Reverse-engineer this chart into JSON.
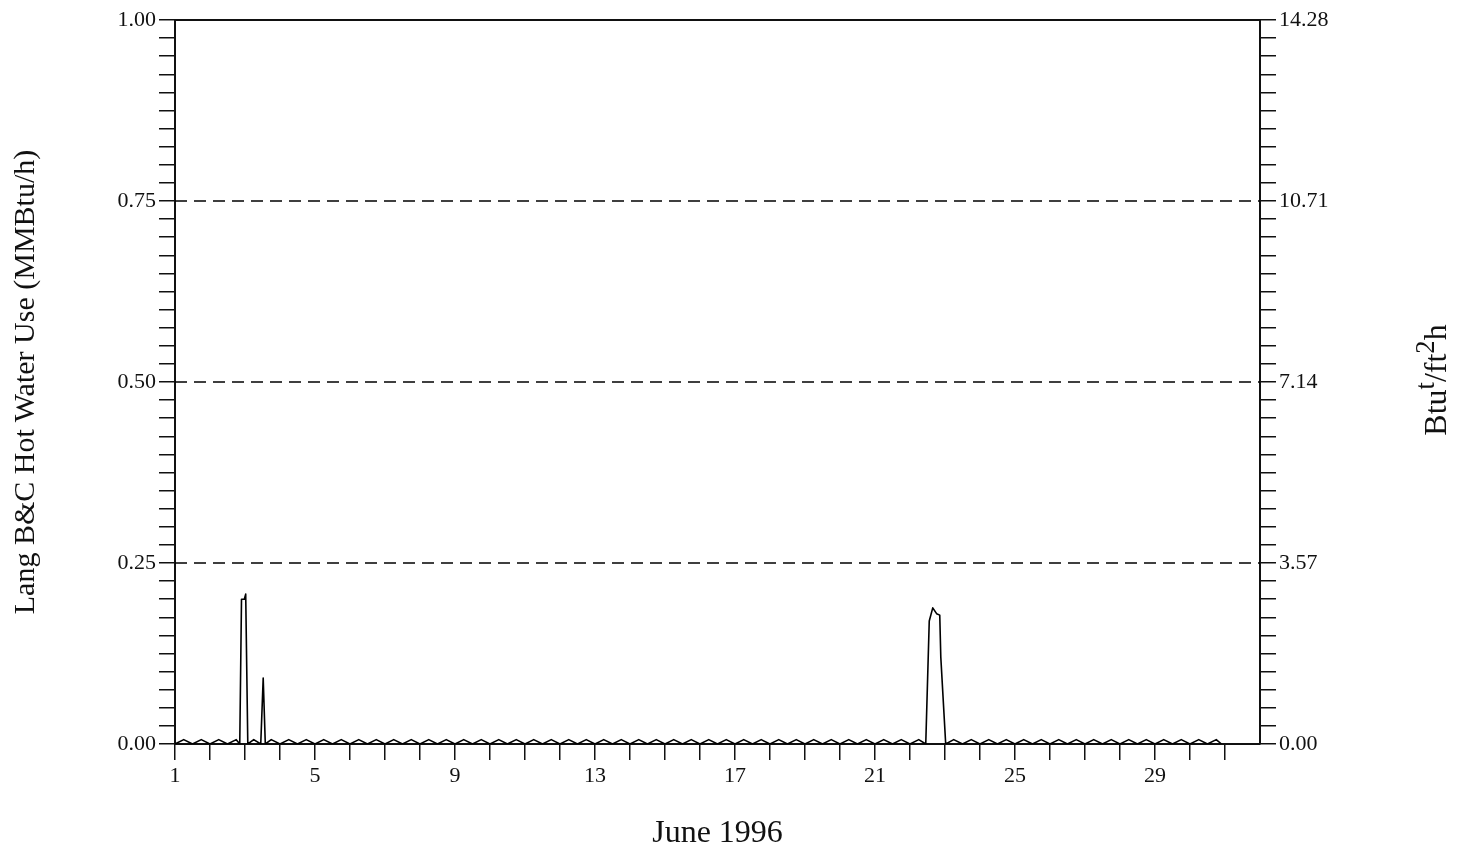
{
  "chart_data": {
    "type": "line",
    "xlabel": "June 1996",
    "ylabel": "Lang B&C Hot Water Use (MMBtu/h)",
    "y2label": "Btu$^{t}$/ft$^{2}$h",
    "xlim": [
      1,
      32
    ],
    "xticks": [
      1,
      {
        "value": 2,
        "label": null
      },
      {
        "value": 3,
        "label": null
      },
      {
        "value": 4,
        "label": null
      },
      5,
      {
        "value": 6,
        "label": null
      },
      {
        "value": 7,
        "label": null
      },
      {
        "value": 8,
        "label": null
      },
      9,
      {
        "value": 10,
        "label": null
      },
      {
        "value": 11,
        "label": null
      },
      {
        "value": 12,
        "label": null
      },
      13,
      {
        "value": 14,
        "label": null
      },
      {
        "value": 15,
        "label": null
      },
      {
        "value": 16,
        "label": null
      },
      17,
      {
        "value": 18,
        "label": null
      },
      {
        "value": 19,
        "label": null
      },
      {
        "value": 20,
        "label": null
      },
      21,
      {
        "value": 22,
        "label": null
      },
      {
        "value": 23,
        "label": null
      },
      {
        "value": 24,
        "label": null
      },
      25,
      {
        "value": 26,
        "label": null
      },
      {
        "value": 27,
        "label": null
      },
      {
        "value": 28,
        "label": null
      },
      29,
      {
        "value": 30,
        "label": null
      },
      {
        "value": 31,
        "label": null
      }
    ],
    "ylim": [
      0,
      1
    ],
    "yticks": [
      {
        "value": 0,
        "label": "0.00"
      },
      {
        "value": 0.025,
        "label": null
      },
      {
        "value": 0.05,
        "label": null
      },
      {
        "value": 0.075,
        "label": null
      },
      {
        "value": 0.1,
        "label": null
      },
      {
        "value": 0.125,
        "label": null
      },
      {
        "value": 0.15,
        "label": null
      },
      {
        "value": 0.175,
        "label": null
      },
      {
        "value": 0.2,
        "label": null
      },
      {
        "value": 0.225,
        "label": null
      },
      {
        "value": 0.25,
        "label": "0.25"
      },
      {
        "value": 0.275,
        "label": null
      },
      {
        "value": 0.3,
        "label": null
      },
      {
        "value": 0.325,
        "label": null
      },
      {
        "value": 0.35,
        "label": null
      },
      {
        "value": 0.375,
        "label": null
      },
      {
        "value": 0.4,
        "label": null
      },
      {
        "value": 0.425,
        "label": null
      },
      {
        "value": 0.45,
        "label": null
      },
      {
        "value": 0.475,
        "label": null
      },
      {
        "value": 0.5,
        "label": "0.50"
      },
      {
        "value": 0.525,
        "label": null
      },
      {
        "value": 0.55,
        "label": null
      },
      {
        "value": 0.575,
        "label": null
      },
      {
        "value": 0.6,
        "label": null
      },
      {
        "value": 0.625,
        "label": null
      },
      {
        "value": 0.65,
        "label": null
      },
      {
        "value": 0.675,
        "label": null
      },
      {
        "value": 0.7,
        "label": null
      },
      {
        "value": 0.725,
        "label": null
      },
      {
        "value": 0.75,
        "label": "0.75"
      },
      {
        "value": 0.775,
        "label": null
      },
      {
        "value": 0.8,
        "label": null
      },
      {
        "value": 0.825,
        "label": null
      },
      {
        "value": 0.85,
        "label": null
      },
      {
        "value": 0.875,
        "label": null
      },
      {
        "value": 0.9,
        "label": null
      },
      {
        "value": 0.925,
        "label": null
      },
      {
        "value": 0.95,
        "label": null
      },
      {
        "value": 0.975,
        "label": null
      },
      {
        "value": 1,
        "label": "1.00"
      }
    ],
    "y2lim": [
      0,
      14.28
    ],
    "y2ticks": [
      {
        "value": 0,
        "label": "0.00"
      },
      {
        "value": 0.357,
        "label": null
      },
      {
        "value": 0.714,
        "label": null
      },
      {
        "value": 1.071,
        "label": null
      },
      {
        "value": 1.428,
        "label": null
      },
      {
        "value": 1.785,
        "label": null
      },
      {
        "value": 2.142,
        "label": null
      },
      {
        "value": 2.499,
        "label": null
      },
      {
        "value": 2.856,
        "label": null
      },
      {
        "value": 3.213,
        "label": null
      },
      3.57,
      {
        "value": 3.927,
        "label": null
      },
      {
        "value": 4.284,
        "label": null
      },
      {
        "value": 4.641,
        "label": null
      },
      {
        "value": 4.998,
        "label": null
      },
      {
        "value": 5.355,
        "label": null
      },
      {
        "value": 5.712,
        "label": null
      },
      {
        "value": 6.069,
        "label": null
      },
      {
        "value": 6.426,
        "label": null
      },
      {
        "value": 6.783,
        "label": null
      },
      7.14,
      {
        "value": 7.497,
        "label": null
      },
      {
        "value": 7.854,
        "label": null
      },
      {
        "value": 8.211,
        "label": null
      },
      {
        "value": 8.568,
        "label": null
      },
      {
        "value": 8.925,
        "label": null
      },
      {
        "value": 9.282,
        "label": null
      },
      {
        "value": 9.639,
        "label": null
      },
      {
        "value": 9.996,
        "label": null
      },
      {
        "value": 10.353,
        "label": null
      },
      10.71,
      {
        "value": 11.067,
        "label": null
      },
      {
        "value": 11.424,
        "label": null
      },
      {
        "value": 11.781,
        "label": null
      },
      {
        "value": 12.138,
        "label": null
      },
      {
        "value": 12.495,
        "label": null
      },
      {
        "value": 12.852,
        "label": null
      },
      {
        "value": 13.209,
        "label": null
      },
      {
        "value": 13.566,
        "label": null
      },
      {
        "value": 13.923,
        "label": null
      },
      14.28
    ],
    "ref_lines": [
      {
        "axis": "y",
        "value": 0.25,
        "line_style": "dashed",
        "color": "#000000"
      },
      {
        "axis": "y",
        "value": 0.5,
        "line_style": "dashed",
        "color": "#000000"
      },
      {
        "axis": "y",
        "value": 0.75,
        "line_style": "dashed",
        "color": "#000000"
      }
    ],
    "legend": false,
    "marker": "none",
    "line_style": "solid",
    "series": [
      {
        "color": "#000000",
        "x": [
          1,
          1.25,
          1.5,
          1.75,
          2,
          2.25,
          2.5,
          2.75,
          2.85,
          2.9,
          2.98,
          3.02,
          3.08,
          3.25,
          3.45,
          3.52,
          3.58,
          3.75,
          4,
          4.25,
          4.5,
          4.75,
          5,
          5.25,
          5.5,
          5.75,
          6,
          6.25,
          6.5,
          6.75,
          7,
          7.25,
          7.5,
          7.75,
          8,
          8.25,
          8.5,
          8.75,
          9,
          9.25,
          9.5,
          9.75,
          10,
          10.25,
          10.5,
          10.75,
          11,
          11.25,
          11.5,
          11.75,
          12,
          12.25,
          12.5,
          12.75,
          13,
          13.25,
          13.5,
          13.75,
          14,
          14.25,
          14.5,
          14.75,
          15,
          15.25,
          15.5,
          15.75,
          16,
          16.25,
          16.5,
          16.75,
          17,
          17.25,
          17.5,
          17.75,
          18,
          18.25,
          18.5,
          18.75,
          19,
          19.25,
          19.5,
          19.75,
          20,
          20.25,
          20.5,
          20.75,
          21,
          21.25,
          21.5,
          21.75,
          22,
          22.25,
          22.45,
          22.55,
          22.65,
          22.76,
          22.85,
          22.88,
          23.02,
          23.25,
          23.5,
          23.75,
          24,
          24.25,
          24.5,
          24.75,
          25,
          25.25,
          25.5,
          25.75,
          26,
          26.25,
          26.5,
          26.75,
          27,
          27.25,
          27.5,
          27.75,
          28,
          28.25,
          28.5,
          28.75,
          29,
          29.25,
          29.5,
          29.75,
          30,
          30.25,
          30.5,
          30.75,
          30.9
        ],
        "values": [
          0,
          0.006,
          0,
          0.006,
          0,
          0.006,
          0,
          0.006,
          0,
          0.2,
          0.2,
          0.207,
          0,
          0.006,
          0,
          0.091,
          0,
          0.006,
          0,
          0.006,
          0,
          0.006,
          0,
          0.006,
          0,
          0.006,
          0,
          0.006,
          0,
          0.006,
          0,
          0.006,
          0,
          0.006,
          0,
          0.006,
          0,
          0.006,
          0,
          0.006,
          0,
          0.006,
          0,
          0.006,
          0,
          0.006,
          0,
          0.006,
          0,
          0.006,
          0,
          0.006,
          0,
          0.006,
          0,
          0.006,
          0,
          0.006,
          0,
          0.006,
          0,
          0.006,
          0,
          0.006,
          0,
          0.006,
          0,
          0.006,
          0,
          0.006,
          0,
          0.006,
          0,
          0.006,
          0,
          0.006,
          0,
          0.006,
          0,
          0.006,
          0,
          0.006,
          0,
          0.006,
          0,
          0.006,
          0,
          0.006,
          0,
          0.006,
          0,
          0.006,
          0,
          0.17,
          0.188,
          0.18,
          0.178,
          0.12,
          0,
          0.006,
          0,
          0.006,
          0,
          0.006,
          0,
          0.006,
          0,
          0.006,
          0,
          0.006,
          0,
          0.006,
          0,
          0.006,
          0,
          0.006,
          0,
          0.006,
          0,
          0.006,
          0,
          0.006,
          0,
          0.006,
          0,
          0.006,
          0,
          0.006,
          0,
          0.006,
          0
        ]
      }
    ]
  }
}
